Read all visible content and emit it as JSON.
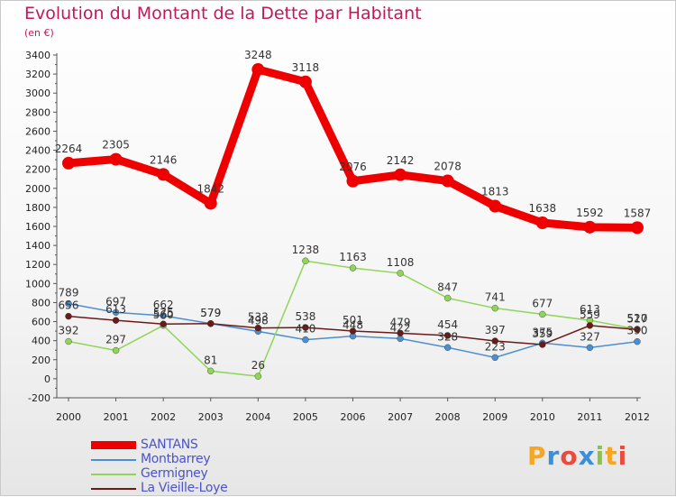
{
  "title": "Evolution du Montant de la Dette par Habitant",
  "subtitle": "(en €)",
  "logo": "Proxiti",
  "logo_colors": [
    "#f5a623",
    "#3b8fd8",
    "#e94b3c",
    "#3b8fd8",
    "#8bc34a",
    "#f5a623",
    "#e94b3c"
  ],
  "chart_data": {
    "type": "line",
    "title": "Evolution du Montant de la Dette par Habitant",
    "ylabel": "(en €)",
    "xlabel": "",
    "x": [
      "2000",
      "2001",
      "2002",
      "2003",
      "2004",
      "2005",
      "2006",
      "2007",
      "2008",
      "2009",
      "2010",
      "2011",
      "2012"
    ],
    "ylim": [
      -200,
      3400
    ],
    "yticks": [
      -200,
      0,
      200,
      400,
      600,
      800,
      1000,
      1200,
      1400,
      1600,
      1800,
      2000,
      2200,
      2400,
      2600,
      2800,
      3000,
      3200,
      3400
    ],
    "grid": false,
    "legend_position": "bottom-left",
    "series": [
      {
        "name": "SANTANS",
        "color": "#ee0000",
        "values": [
          2264,
          2305,
          2146,
          1842,
          3248,
          3118,
          2076,
          2142,
          2078,
          1813,
          1638,
          1592,
          1587
        ]
      },
      {
        "name": "Montbarrey",
        "color": "#4a8fd0",
        "values": [
          789,
          697,
          662,
          579,
          498,
          410,
          448,
          422,
          328,
          223,
          375,
          327,
          390
        ]
      },
      {
        "name": "Germigney",
        "color": "#90d55a",
        "values": [
          392,
          297,
          560,
          81,
          26,
          1238,
          1163,
          1108,
          847,
          741,
          677,
          613,
          520
        ]
      },
      {
        "name": "La Vieille-Loye",
        "color": "#6b1a1a",
        "values": [
          656,
          613,
          575,
          579,
          533,
          538,
          501,
          479,
          454,
          397,
          359,
          559,
          517
        ]
      }
    ]
  }
}
